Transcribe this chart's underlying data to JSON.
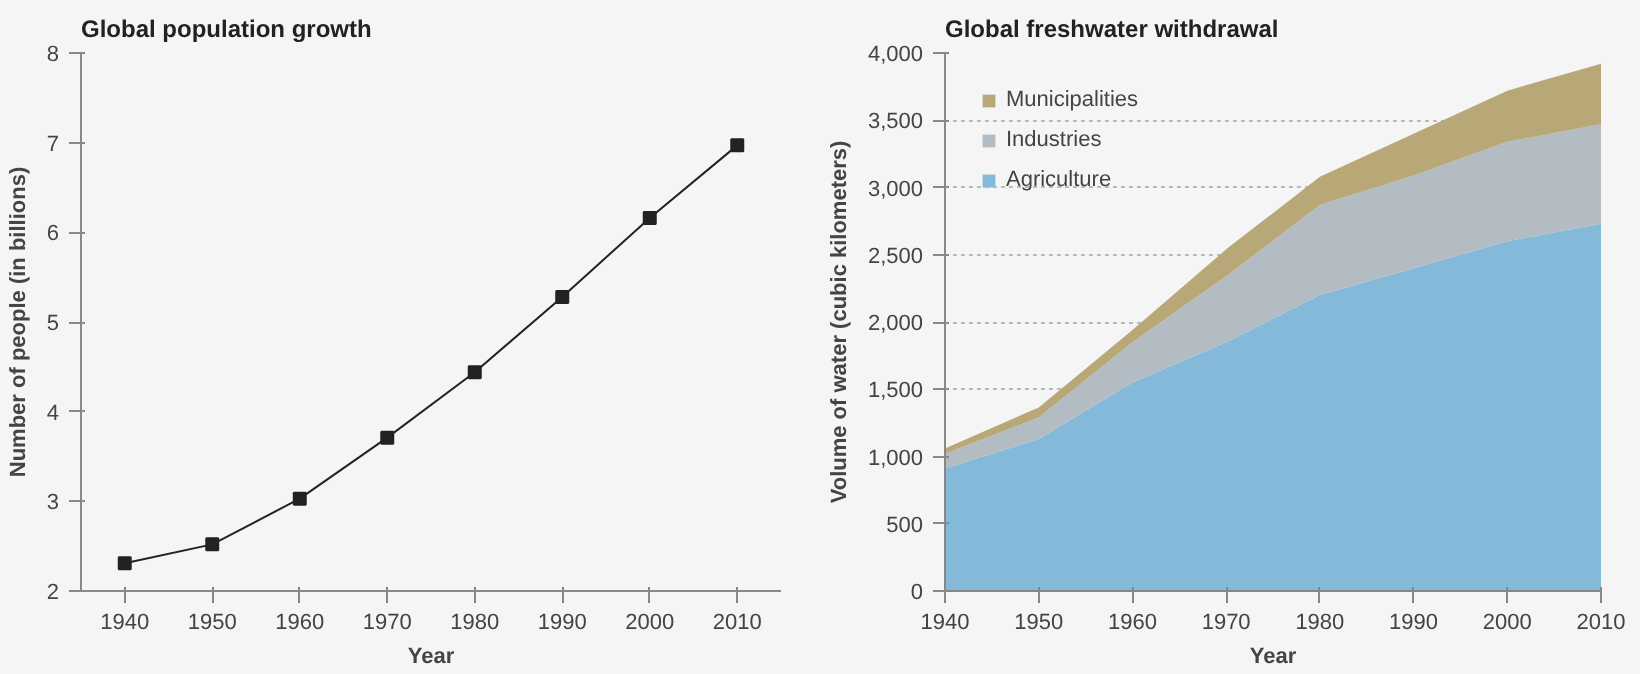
{
  "chart_data": [
    {
      "type": "line",
      "title": "Global population growth",
      "xlabel": "Year",
      "ylabel": "Number of people (in billions)",
      "x": [
        1940,
        1950,
        1960,
        1970,
        1980,
        1990,
        2000,
        2010
      ],
      "series": [
        {
          "color": "#222222",
          "values": [
            2.31,
            2.52,
            3.03,
            3.71,
            4.44,
            5.28,
            6.16,
            6.97
          ]
        }
      ],
      "xlim": [
        1935,
        2015
      ],
      "xticks": [
        1940,
        1950,
        1960,
        1970,
        1980,
        1990,
        2000,
        2010
      ],
      "ylim": [
        2,
        8
      ],
      "yticks": [
        2,
        3,
        4,
        5,
        6,
        7,
        8
      ],
      "marker": "square",
      "grid": false,
      "legend": false
    },
    {
      "type": "area",
      "stacked": true,
      "title": "Global freshwater withdrawal",
      "xlabel": "Year",
      "ylabel": "Volume of water (cubic kilometers)",
      "x": [
        1940,
        1950,
        1960,
        1970,
        1980,
        1990,
        2000,
        2010
      ],
      "series": [
        {
          "name": "Agriculture",
          "color": "#85b9d9",
          "values": [
            910,
            1130,
            1550,
            1850,
            2200,
            2400,
            2600,
            2730
          ]
        },
        {
          "name": "Industries",
          "color": "#b4bcc3",
          "values": [
            110,
            160,
            300,
            490,
            670,
            690,
            740,
            740
          ]
        },
        {
          "name": "Municipalities",
          "color": "#b8a777",
          "values": [
            40,
            75,
            90,
            200,
            210,
            310,
            380,
            450
          ]
        }
      ],
      "xlim": [
        1940,
        2010
      ],
      "xticks": [
        1940,
        1950,
        1960,
        1970,
        1980,
        1990,
        2000,
        2010
      ],
      "ylim": [
        0,
        4000
      ],
      "yticks": [
        0,
        500,
        {
          "value": 1000,
          "label": "1,000"
        },
        {
          "value": 1500,
          "label": "1,500"
        },
        {
          "value": 2000,
          "label": "2,000"
        },
        {
          "value": 2500,
          "label": "2,500"
        },
        {
          "value": 3000,
          "label": "3,000"
        },
        {
          "value": 3500,
          "label": "3,500"
        },
        {
          "value": 4000,
          "label": "4,000"
        }
      ],
      "grid": "y",
      "legend": "top left"
    }
  ]
}
